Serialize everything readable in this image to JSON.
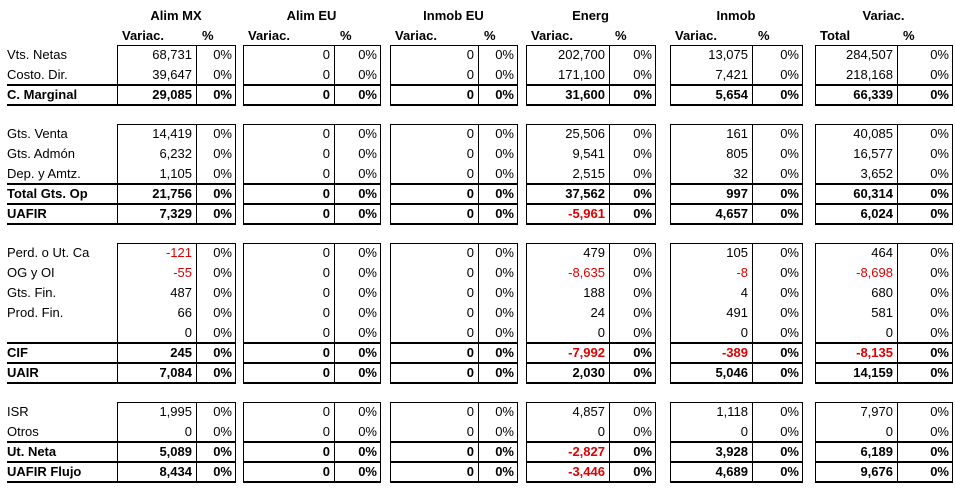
{
  "columns": [
    {
      "title": "Alim MX",
      "sub_var": "Variac.",
      "sub_pct": "%"
    },
    {
      "title": "Alim EU",
      "sub_var": "Variac.",
      "sub_pct": "%"
    },
    {
      "title": "Inmob EU",
      "sub_var": "Variac.",
      "sub_pct": "%"
    },
    {
      "title": "Energ",
      "sub_var": "Variac.",
      "sub_pct": "%"
    },
    {
      "title": "Inmob",
      "sub_var": "Variac.",
      "sub_pct": "%"
    },
    {
      "title": "Variac.",
      "sub_var": "Total",
      "sub_pct": "%"
    }
  ],
  "sections": [
    {
      "rows": [
        {
          "label": "Vts. Netas",
          "bold": false,
          "values": [
            "68,731",
            "0",
            "0",
            "202,700",
            "13,075",
            "284,507"
          ],
          "pcts": [
            "0%",
            "0%",
            "0%",
            "0%",
            "0%",
            "0%"
          ]
        },
        {
          "label": "Costo. Dir.",
          "bold": false,
          "values": [
            "39,647",
            "0",
            "0",
            "171,100",
            "7,421",
            "218,168"
          ],
          "pcts": [
            "0%",
            "0%",
            "0%",
            "0%",
            "0%",
            "0%"
          ]
        },
        {
          "label": "C. Marginal",
          "bold": true,
          "values": [
            "29,085",
            "0",
            "0",
            "31,600",
            "5,654",
            "66,339"
          ],
          "pcts": [
            "0%",
            "0%",
            "0%",
            "0%",
            "0%",
            "0%"
          ]
        }
      ]
    },
    {
      "rows": [
        {
          "label": "Gts. Venta",
          "bold": false,
          "values": [
            "14,419",
            "0",
            "0",
            "25,506",
            "161",
            "40,085"
          ],
          "pcts": [
            "0%",
            "0%",
            "0%",
            "0%",
            "0%",
            "0%"
          ]
        },
        {
          "label": "Gts. Admón",
          "bold": false,
          "values": [
            "6,232",
            "0",
            "0",
            "9,541",
            "805",
            "16,577"
          ],
          "pcts": [
            "0%",
            "0%",
            "0%",
            "0%",
            "0%",
            "0%"
          ]
        },
        {
          "label": "Dep. y Amtz.",
          "bold": false,
          "values": [
            "1,105",
            "0",
            "0",
            "2,515",
            "32",
            "3,652"
          ],
          "pcts": [
            "0%",
            "0%",
            "0%",
            "0%",
            "0%",
            "0%"
          ]
        },
        {
          "label": "Total Gts. Op",
          "bold": true,
          "values": [
            "21,756",
            "0",
            "0",
            "37,562",
            "997",
            "60,314"
          ],
          "pcts": [
            "0%",
            "0%",
            "0%",
            "0%",
            "0%",
            "0%"
          ]
        },
        {
          "label": "UAFIR",
          "bold": true,
          "values": [
            "7,329",
            "0",
            "0",
            "-5,961",
            "4,657",
            "6,024"
          ],
          "pcts": [
            "0%",
            "0%",
            "0%",
            "0%",
            "0%",
            "0%"
          ]
        }
      ]
    },
    {
      "rows": [
        {
          "label": "Perd. o Ut. Ca",
          "bold": false,
          "values": [
            "-121",
            "0",
            "0",
            "479",
            "105",
            "464"
          ],
          "pcts": [
            "0%",
            "0%",
            "0%",
            "0%",
            "0%",
            "0%"
          ]
        },
        {
          "label": "OG y OI",
          "bold": false,
          "values": [
            "-55",
            "0",
            "0",
            "-8,635",
            "-8",
            "-8,698"
          ],
          "pcts": [
            "0%",
            "0%",
            "0%",
            "0%",
            "0%",
            "0%"
          ]
        },
        {
          "label": "Gts. Fin.",
          "bold": false,
          "values": [
            "487",
            "0",
            "0",
            "188",
            "4",
            "680"
          ],
          "pcts": [
            "0%",
            "0%",
            "0%",
            "0%",
            "0%",
            "0%"
          ]
        },
        {
          "label": "Prod. Fin.",
          "bold": false,
          "values": [
            "66",
            "0",
            "0",
            "24",
            "491",
            "581"
          ],
          "pcts": [
            "0%",
            "0%",
            "0%",
            "0%",
            "0%",
            "0%"
          ]
        },
        {
          "label": "",
          "bold": false,
          "values": [
            "0",
            "0",
            "0",
            "0",
            "0",
            "0"
          ],
          "pcts": [
            "0%",
            "0%",
            "0%",
            "0%",
            "0%",
            "0%"
          ]
        },
        {
          "label": "CIF",
          "bold": true,
          "values": [
            "245",
            "0",
            "0",
            "-7,992",
            "-389",
            "-8,135"
          ],
          "pcts": [
            "0%",
            "0%",
            "0%",
            "0%",
            "0%",
            "0%"
          ]
        },
        {
          "label": "UAIR",
          "bold": true,
          "values": [
            "7,084",
            "0",
            "0",
            "2,030",
            "5,046",
            "14,159"
          ],
          "pcts": [
            "0%",
            "0%",
            "0%",
            "0%",
            "0%",
            "0%"
          ]
        }
      ]
    },
    {
      "rows": [
        {
          "label": "ISR",
          "bold": false,
          "values": [
            "1,995",
            "0",
            "0",
            "4,857",
            "1,118",
            "7,970"
          ],
          "pcts": [
            "0%",
            "0%",
            "0%",
            "0%",
            "0%",
            "0%"
          ]
        },
        {
          "label": "Otros",
          "bold": false,
          "values": [
            "0",
            "0",
            "0",
            "0",
            "0",
            "0"
          ],
          "pcts": [
            "0%",
            "0%",
            "0%",
            "0%",
            "0%",
            "0%"
          ]
        },
        {
          "label": "Ut. Neta",
          "bold": true,
          "values": [
            "5,089",
            "0",
            "0",
            "-2,827",
            "3,928",
            "6,189"
          ],
          "pcts": [
            "0%",
            "0%",
            "0%",
            "0%",
            "0%",
            "0%"
          ]
        },
        {
          "label": "UAFIR Flujo",
          "bold": true,
          "values": [
            "8,434",
            "0",
            "0",
            "-3,446",
            "4,689",
            "9,676"
          ],
          "pcts": [
            "0%",
            "0%",
            "0%",
            "0%",
            "0%",
            "0%"
          ]
        }
      ]
    }
  ],
  "colors": {
    "negative": "#e00000",
    "text": "#000000"
  }
}
